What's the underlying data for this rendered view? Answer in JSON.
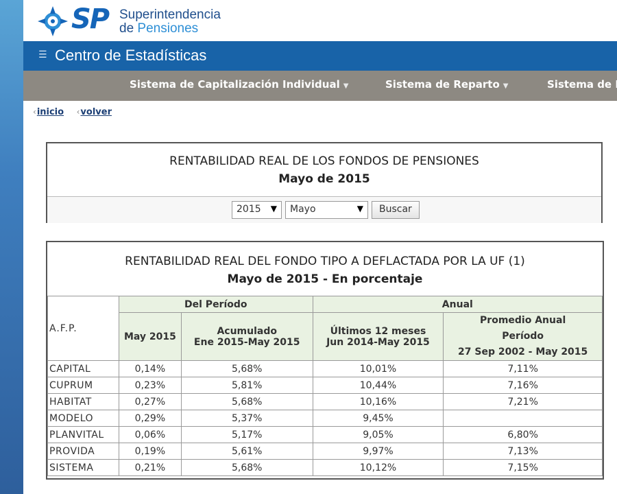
{
  "header": {
    "logo_mark": "SP",
    "logo_line1": "Superintendencia",
    "logo_line2_prefix": "de ",
    "logo_line2_accent": "Pensiones"
  },
  "banner": {
    "title": "Centro de Estadísticas",
    "icon": "menu-arrow-icon"
  },
  "nav": {
    "items": [
      {
        "label": "Sistema de Capitalización Individual"
      },
      {
        "label": "Sistema de Reparto"
      },
      {
        "label": "Sistema de P"
      }
    ]
  },
  "breadcrumb": {
    "home": "inicio",
    "back": "volver"
  },
  "filter_box": {
    "title": "RENTABILIDAD REAL DE LOS FONDOS DE PENSIONES",
    "subtitle": "Mayo de 2015",
    "year_value": "2015",
    "month_value": "Mayo",
    "search_label": "Buscar"
  },
  "table_box": {
    "title": "RENTABILIDAD REAL DEL FONDO TIPO A DEFLACTADA POR LA UF (1)",
    "subtitle": "Mayo de 2015 - En porcentaje",
    "headers": {
      "afp": "A.F.P.",
      "del_periodo": "Del Período",
      "anual": "Anual",
      "may": "May 2015",
      "acum_l1": "Acumulado",
      "acum_l2": "Ene 2015-May 2015",
      "ult_l1": "Últimos 12 meses",
      "ult_l2": "Jun 2014-May 2015",
      "prom_l1": "Promedio Anual",
      "prom_l2": "Período",
      "prom_l3": "27 Sep 2002 - May 2015"
    },
    "rows": [
      {
        "afp": "CAPITAL",
        "may": "0,14%",
        "acum": "5,68%",
        "ult12": "10,01%",
        "prom": "7,11%"
      },
      {
        "afp": "CUPRUM",
        "may": "0,23%",
        "acum": "5,81%",
        "ult12": "10,44%",
        "prom": "7,16%"
      },
      {
        "afp": "HABITAT",
        "may": "0,27%",
        "acum": "5,68%",
        "ult12": "10,16%",
        "prom": "7,21%"
      },
      {
        "afp": "MODELO",
        "may": "0,29%",
        "acum": "5,37%",
        "ult12": "9,45%",
        "prom": ""
      },
      {
        "afp": "PLANVITAL",
        "may": "0,06%",
        "acum": "5,17%",
        "ult12": "9,05%",
        "prom": "6,80%"
      },
      {
        "afp": "PROVIDA",
        "may": "0,19%",
        "acum": "5,61%",
        "ult12": "9,97%",
        "prom": "7,13%"
      },
      {
        "afp": "SISTEMA",
        "may": "0,21%",
        "acum": "5,68%",
        "ult12": "10,12%",
        "prom": "7,15%"
      }
    ]
  }
}
